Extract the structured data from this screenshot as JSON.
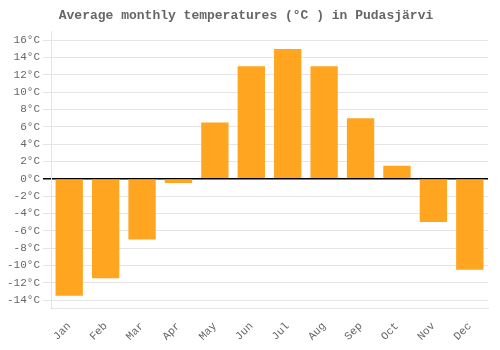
{
  "chart_data": {
    "type": "bar",
    "title": "Average monthly temperatures (°C ) in Pudasjärvi",
    "categories": [
      "Jan",
      "Feb",
      "Mar",
      "Apr",
      "May",
      "Jun",
      "Jul",
      "Aug",
      "Sep",
      "Oct",
      "Nov",
      "Dec"
    ],
    "values": [
      -13.5,
      -11.5,
      -7.0,
      -0.5,
      6.5,
      13.0,
      15.0,
      13.0,
      7.0,
      1.5,
      -5.0,
      -10.5
    ],
    "color": "#FFA520",
    "ylim": [
      -15,
      17
    ],
    "yticks": [
      {
        "value": -14,
        "label": "-14°C"
      },
      {
        "value": -12,
        "label": "-12°C"
      },
      {
        "value": -10,
        "label": "-10°C"
      },
      {
        "value": -8,
        "label": "-8°C"
      },
      {
        "value": -6,
        "label": "-6°C"
      },
      {
        "value": -4,
        "label": "-4°C"
      },
      {
        "value": -2,
        "label": "-2°C"
      },
      {
        "value": 0,
        "label": "0°C"
      },
      {
        "value": 2,
        "label": "2°C"
      },
      {
        "value": 4,
        "label": "4°C"
      },
      {
        "value": 6,
        "label": "6°C"
      },
      {
        "value": 8,
        "label": "8°C"
      },
      {
        "value": 10,
        "label": "10°C"
      },
      {
        "value": 12,
        "label": "12°C"
      },
      {
        "value": 14,
        "label": "14°C"
      },
      {
        "value": 16,
        "label": "16°C"
      }
    ],
    "grid": true
  }
}
